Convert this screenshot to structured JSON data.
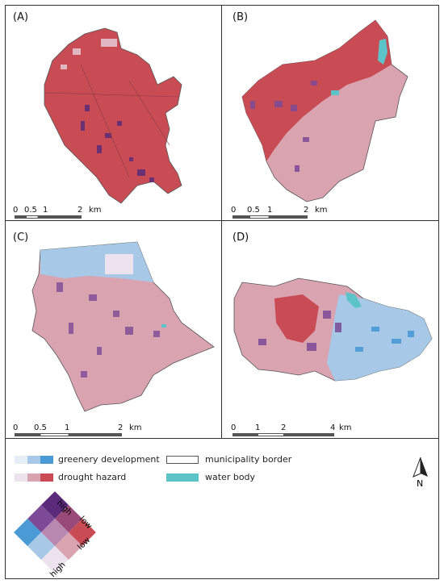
{
  "panels": [
    {
      "label": "(A)",
      "scale": {
        "ticks": [
          "0",
          "0.5",
          "1",
          "2"
        ],
        "unit": "km"
      }
    },
    {
      "label": "(B)",
      "scale": {
        "ticks": [
          "0",
          "0.5",
          "1",
          "2"
        ],
        "unit": "km"
      }
    },
    {
      "label": "(C)",
      "scale": {
        "ticks": [
          "0",
          "0.5",
          "1",
          "2"
        ],
        "unit": "km"
      }
    },
    {
      "label": "(D)",
      "scale": {
        "ticks": [
          "0",
          "1",
          "2",
          "4"
        ],
        "unit": "km"
      }
    }
  ],
  "legend": {
    "greenery": "greenery development",
    "drought": "drought hazard",
    "border": "municipality border",
    "water": "water body",
    "north": "N",
    "bivariate": {
      "high_top": "high",
      "low_right_top": "low",
      "low_right_bottom": "low",
      "high_bottom": "high"
    }
  },
  "colors": {
    "drought_high": "#c94c55",
    "drought_mid": "#d9a3b0",
    "drought_low": "#ece3ee",
    "green_high": "#4a9ad6",
    "green_mid": "#a7c8e6",
    "green_low": "#e6eef8",
    "combo_dark": "#5b2a7a",
    "combo_mid": "#7c4a96",
    "water": "#5cc4c8"
  }
}
